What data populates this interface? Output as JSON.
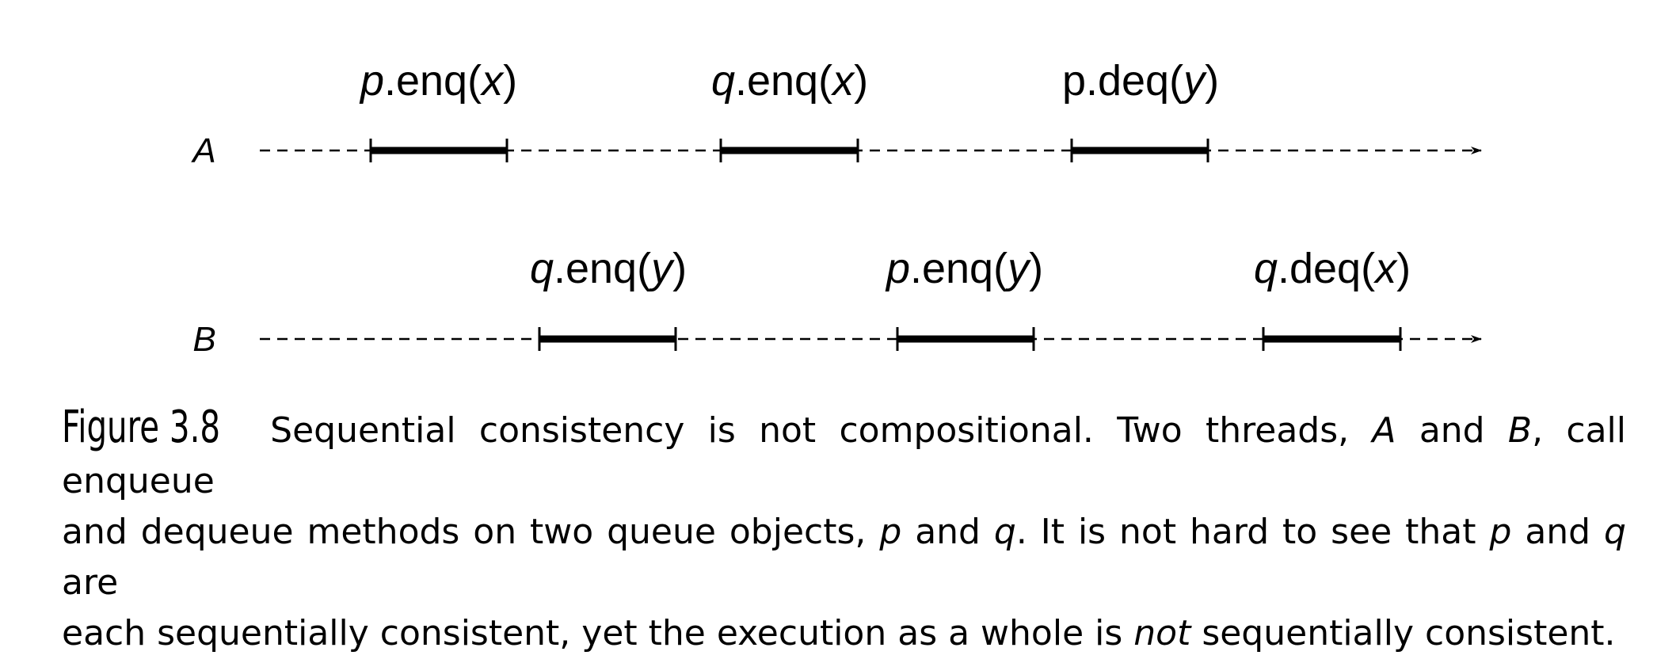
{
  "threads": [
    {
      "name": "A",
      "events": [
        {
          "obj": "p",
          "op": ".enq(",
          "arg": "x",
          "close": ")",
          "obj_italic": true
        },
        {
          "obj": "q",
          "op": ".enq(",
          "arg": "x",
          "close": ")",
          "obj_italic": true
        },
        {
          "obj": "p",
          "op": ".deq(",
          "arg": "y",
          "close": ")",
          "obj_italic": false
        }
      ]
    },
    {
      "name": "B",
      "events": [
        {
          "obj": "q",
          "op": ".enq(",
          "arg": "y",
          "close": ")",
          "obj_italic": true
        },
        {
          "obj": "p",
          "op": ".enq(",
          "arg": "y",
          "close": ")",
          "obj_italic": true
        },
        {
          "obj": "q",
          "op": ".deq(",
          "arg": "x",
          "close": ")",
          "obj_italic": true
        }
      ]
    }
  ],
  "caption": {
    "label": "Figure 3.8",
    "line1_a": "Sequential consistency is not compositional. Two threads, ",
    "line1_A": "A",
    "line1_b": " and ",
    "line1_B": "B",
    "line1_c": ", call enqueue",
    "line2_a": "and dequeue methods on two queue objects, ",
    "line2_p": "p",
    "line2_b": " and ",
    "line2_q": "q",
    "line2_c": ". It is not hard to see that ",
    "line2_p2": "p",
    "line2_d": " and ",
    "line2_q2": "q",
    "line2_e": " are",
    "line3_a": "each sequentially consistent, yet the execution as a whole is ",
    "line3_not": "not",
    "line3_b": " sequentially consistent."
  }
}
